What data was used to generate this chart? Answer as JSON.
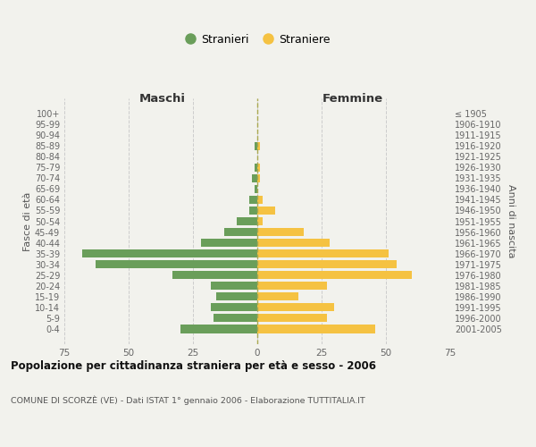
{
  "age_groups": [
    "0-4",
    "5-9",
    "10-14",
    "15-19",
    "20-24",
    "25-29",
    "30-34",
    "35-39",
    "40-44",
    "45-49",
    "50-54",
    "55-59",
    "60-64",
    "65-69",
    "70-74",
    "75-79",
    "80-84",
    "85-89",
    "90-94",
    "95-99",
    "100+"
  ],
  "birth_years": [
    "2001-2005",
    "1996-2000",
    "1991-1995",
    "1986-1990",
    "1981-1985",
    "1976-1980",
    "1971-1975",
    "1966-1970",
    "1961-1965",
    "1956-1960",
    "1951-1955",
    "1946-1950",
    "1941-1945",
    "1936-1940",
    "1931-1935",
    "1926-1930",
    "1921-1925",
    "1916-1920",
    "1911-1915",
    "1906-1910",
    "≤ 1905"
  ],
  "maschi": [
    30,
    17,
    18,
    16,
    18,
    33,
    63,
    68,
    22,
    13,
    8,
    3,
    3,
    1,
    2,
    1,
    0,
    1,
    0,
    0,
    0
  ],
  "femmine": [
    46,
    27,
    30,
    16,
    27,
    60,
    54,
    51,
    28,
    18,
    2,
    7,
    2,
    0,
    1,
    1,
    0,
    1,
    0,
    0,
    0
  ],
  "male_color": "#6a9e5a",
  "female_color": "#f5c242",
  "background_color": "#f2f2ed",
  "grid_color": "#cccccc",
  "title": "Popolazione per cittadinanza straniera per età e sesso - 2006",
  "subtitle": "COMUNE DI SCORZÈ (VE) - Dati ISTAT 1° gennaio 2006 - Elaborazione TUTTITALIA.IT",
  "xlabel_left": "Maschi",
  "xlabel_right": "Femmine",
  "ylabel_left": "Fasce di età",
  "ylabel_right": "Anni di nascita",
  "xlim": 75,
  "legend_male": "Stranieri",
  "legend_female": "Straniere"
}
